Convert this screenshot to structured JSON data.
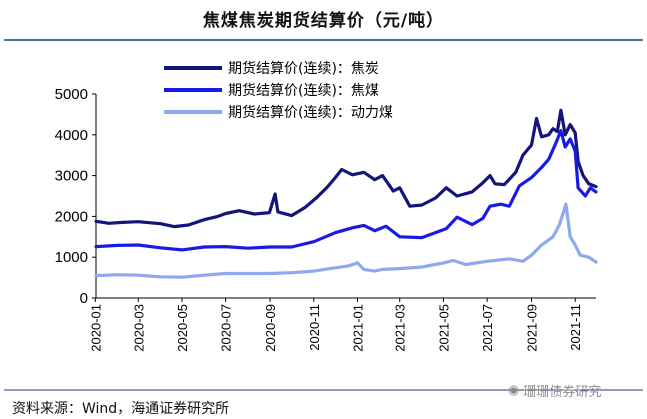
{
  "title": "焦煤焦炭期货结算价（元/吨）",
  "source": "资料来源：Wind，海通证券研究所",
  "watermark": "珊珊债券研究",
  "colors": {
    "series1": "#14147a",
    "series2": "#1a1ae6",
    "series3": "#8fa8ee",
    "rule": "#1c3a87"
  },
  "chart_data": {
    "type": "line",
    "title": "焦煤焦炭期货结算价（元/吨）",
    "ylim": [
      0,
      5000
    ],
    "yticks": [
      0,
      1000,
      2000,
      3000,
      4000,
      5000
    ],
    "xrange": [
      "2020-01-02",
      "2021-11-30"
    ],
    "xticks": [
      "2020-01",
      "2020-03",
      "2020-05",
      "2020-07",
      "2020-09",
      "2020-11",
      "2021-01",
      "2021-03",
      "2021-05",
      "2021-07",
      "2021-09",
      "2021-11"
    ],
    "legend": [
      "期货结算价(连续)：焦炭",
      "期货结算价(连续)：焦煤",
      "期货结算价(连续)：动力煤"
    ],
    "series": [
      {
        "name": "期货结算价(连续)：焦炭",
        "points": [
          [
            "2020-01-02",
            1880
          ],
          [
            "2020-01-20",
            1830
          ],
          [
            "2020-02-05",
            1850
          ],
          [
            "2020-03-01",
            1870
          ],
          [
            "2020-04-01",
            1820
          ],
          [
            "2020-04-20",
            1750
          ],
          [
            "2020-05-10",
            1790
          ],
          [
            "2020-06-01",
            1920
          ],
          [
            "2020-06-20",
            2000
          ],
          [
            "2020-07-01",
            2070
          ],
          [
            "2020-07-20",
            2140
          ],
          [
            "2020-08-10",
            2060
          ],
          [
            "2020-08-31",
            2090
          ],
          [
            "2020-09-08",
            2550
          ],
          [
            "2020-09-12",
            2110
          ],
          [
            "2020-10-01",
            2020
          ],
          [
            "2020-10-20",
            2220
          ],
          [
            "2020-11-05",
            2460
          ],
          [
            "2020-11-20",
            2720
          ],
          [
            "2020-12-01",
            2950
          ],
          [
            "2020-12-10",
            3150
          ],
          [
            "2020-12-25",
            3020
          ],
          [
            "2021-01-10",
            3080
          ],
          [
            "2021-01-25",
            2900
          ],
          [
            "2021-02-05",
            3000
          ],
          [
            "2021-02-20",
            2620
          ],
          [
            "2021-03-01",
            2700
          ],
          [
            "2021-03-15",
            2250
          ],
          [
            "2021-04-01",
            2280
          ],
          [
            "2021-04-20",
            2450
          ],
          [
            "2021-05-05",
            2700
          ],
          [
            "2021-05-20",
            2500
          ],
          [
            "2021-06-10",
            2600
          ],
          [
            "2021-06-25",
            2820
          ],
          [
            "2021-07-05",
            3000
          ],
          [
            "2021-07-12",
            2800
          ],
          [
            "2021-07-25",
            2780
          ],
          [
            "2021-08-10",
            3080
          ],
          [
            "2021-08-20",
            3500
          ],
          [
            "2021-09-01",
            3750
          ],
          [
            "2021-09-08",
            4400
          ],
          [
            "2021-09-15",
            3950
          ],
          [
            "2021-09-25",
            4000
          ],
          [
            "2021-10-01",
            4150
          ],
          [
            "2021-10-07",
            4080
          ],
          [
            "2021-10-12",
            4600
          ],
          [
            "2021-10-18",
            4000
          ],
          [
            "2021-10-25",
            4250
          ],
          [
            "2021-11-01",
            4050
          ],
          [
            "2021-11-05",
            3350
          ],
          [
            "2021-11-12",
            3000
          ],
          [
            "2021-11-20",
            2800
          ],
          [
            "2021-11-30",
            2730
          ]
        ]
      },
      {
        "name": "期货结算价(连续)：焦煤",
        "points": [
          [
            "2020-01-02",
            1260
          ],
          [
            "2020-02-01",
            1290
          ],
          [
            "2020-03-01",
            1300
          ],
          [
            "2020-04-01",
            1230
          ],
          [
            "2020-05-01",
            1180
          ],
          [
            "2020-06-01",
            1250
          ],
          [
            "2020-07-01",
            1260
          ],
          [
            "2020-08-01",
            1220
          ],
          [
            "2020-09-01",
            1250
          ],
          [
            "2020-10-01",
            1250
          ],
          [
            "2020-11-01",
            1380
          ],
          [
            "2020-12-01",
            1600
          ],
          [
            "2020-12-25",
            1720
          ],
          [
            "2021-01-10",
            1780
          ],
          [
            "2021-01-25",
            1650
          ],
          [
            "2021-02-10",
            1760
          ],
          [
            "2021-03-01",
            1500
          ],
          [
            "2021-04-01",
            1480
          ],
          [
            "2021-05-05",
            1700
          ],
          [
            "2021-05-20",
            1980
          ],
          [
            "2021-06-10",
            1800
          ],
          [
            "2021-06-25",
            1950
          ],
          [
            "2021-07-05",
            2250
          ],
          [
            "2021-07-20",
            2300
          ],
          [
            "2021-08-01",
            2250
          ],
          [
            "2021-08-15",
            2750
          ],
          [
            "2021-09-01",
            2950
          ],
          [
            "2021-09-15",
            3200
          ],
          [
            "2021-09-25",
            3400
          ],
          [
            "2021-10-05",
            3800
          ],
          [
            "2021-10-12",
            4100
          ],
          [
            "2021-10-18",
            3700
          ],
          [
            "2021-10-25",
            3900
          ],
          [
            "2021-11-01",
            3600
          ],
          [
            "2021-11-05",
            2700
          ],
          [
            "2021-11-15",
            2500
          ],
          [
            "2021-11-22",
            2700
          ],
          [
            "2021-11-30",
            2600
          ]
        ]
      },
      {
        "name": "期货结算价(连续)：动力煤",
        "points": [
          [
            "2020-01-02",
            550
          ],
          [
            "2020-02-01",
            570
          ],
          [
            "2020-03-01",
            560
          ],
          [
            "2020-04-01",
            520
          ],
          [
            "2020-05-01",
            510
          ],
          [
            "2020-06-01",
            560
          ],
          [
            "2020-07-01",
            600
          ],
          [
            "2020-08-01",
            600
          ],
          [
            "2020-09-01",
            600
          ],
          [
            "2020-10-01",
            620
          ],
          [
            "2020-11-01",
            660
          ],
          [
            "2020-12-01",
            740
          ],
          [
            "2020-12-20",
            790
          ],
          [
            "2021-01-01",
            860
          ],
          [
            "2021-01-10",
            700
          ],
          [
            "2021-01-25",
            660
          ],
          [
            "2021-02-05",
            700
          ],
          [
            "2021-03-01",
            720
          ],
          [
            "2021-04-01",
            760
          ],
          [
            "2021-05-01",
            860
          ],
          [
            "2021-05-15",
            920
          ],
          [
            "2021-06-01",
            820
          ],
          [
            "2021-07-01",
            900
          ],
          [
            "2021-08-01",
            960
          ],
          [
            "2021-08-20",
            900
          ],
          [
            "2021-09-01",
            1050
          ],
          [
            "2021-09-15",
            1300
          ],
          [
            "2021-10-01",
            1500
          ],
          [
            "2021-10-10",
            1800
          ],
          [
            "2021-10-19",
            2300
          ],
          [
            "2021-10-25",
            1500
          ],
          [
            "2021-11-01",
            1300
          ],
          [
            "2021-11-08",
            1050
          ],
          [
            "2021-11-20",
            1000
          ],
          [
            "2021-11-30",
            880
          ]
        ]
      }
    ]
  }
}
